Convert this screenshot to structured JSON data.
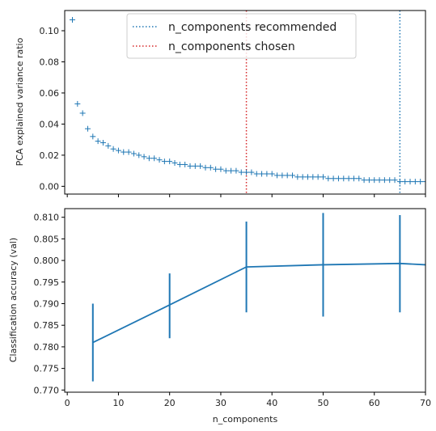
{
  "chart_data": [
    {
      "type": "scatter",
      "marker": "+",
      "ylabel": "PCA explained variance ratio",
      "xlim": [
        -0.5,
        70
      ],
      "ylim": [
        -0.005,
        0.113
      ],
      "yticks": [
        0.0,
        0.02,
        0.04,
        0.06,
        0.08,
        0.1
      ],
      "ytick_labels": [
        "0.00",
        "0.02",
        "0.04",
        "0.06",
        "0.08",
        "0.10"
      ],
      "color": "#1f77b4",
      "x": [
        1,
        2,
        3,
        4,
        5,
        6,
        7,
        8,
        9,
        10,
        11,
        12,
        13,
        14,
        15,
        16,
        17,
        18,
        19,
        20,
        21,
        22,
        23,
        24,
        25,
        26,
        27,
        28,
        29,
        30,
        31,
        32,
        33,
        34,
        35,
        36,
        37,
        38,
        39,
        40,
        41,
        42,
        43,
        44,
        45,
        46,
        47,
        48,
        49,
        50,
        51,
        52,
        53,
        54,
        55,
        56,
        57,
        58,
        59,
        60,
        61,
        62,
        63,
        64,
        65,
        66,
        67,
        68,
        69,
        70
      ],
      "y": [
        0.107,
        0.053,
        0.047,
        0.037,
        0.032,
        0.029,
        0.028,
        0.026,
        0.024,
        0.023,
        0.022,
        0.022,
        0.021,
        0.02,
        0.019,
        0.018,
        0.018,
        0.017,
        0.016,
        0.016,
        0.015,
        0.014,
        0.014,
        0.013,
        0.013,
        0.013,
        0.012,
        0.012,
        0.011,
        0.011,
        0.01,
        0.01,
        0.01,
        0.009,
        0.009,
        0.009,
        0.008,
        0.008,
        0.008,
        0.008,
        0.007,
        0.007,
        0.007,
        0.007,
        0.006,
        0.006,
        0.006,
        0.006,
        0.006,
        0.006,
        0.005,
        0.005,
        0.005,
        0.005,
        0.005,
        0.005,
        0.005,
        0.004,
        0.004,
        0.004,
        0.004,
        0.004,
        0.004,
        0.004,
        0.003,
        0.003,
        0.003,
        0.003,
        0.003,
        0.003
      ],
      "vlines": [
        {
          "x": 65,
          "color": "#1f77b4",
          "style": "dotted",
          "label": "n_components recommended"
        },
        {
          "x": 35,
          "color": "#d62728",
          "style": "dotted",
          "label": "n_components chosen"
        }
      ],
      "legend": {
        "placement": "top-center"
      }
    },
    {
      "type": "line",
      "error_bars": true,
      "xlabel": "n_components",
      "ylabel": "Classification accuracy (val)",
      "xlim": [
        -0.5,
        70
      ],
      "ylim": [
        0.7695,
        0.812
      ],
      "xticks": [
        0,
        10,
        20,
        30,
        40,
        50,
        60,
        70
      ],
      "xtick_labels": [
        "0",
        "10",
        "20",
        "30",
        "40",
        "50",
        "60",
        "70"
      ],
      "yticks": [
        0.77,
        0.775,
        0.78,
        0.785,
        0.79,
        0.795,
        0.8,
        0.805,
        0.81
      ],
      "ytick_labels": [
        "0.770",
        "0.775",
        "0.780",
        "0.785",
        "0.790",
        "0.795",
        "0.800",
        "0.805",
        "0.810"
      ],
      "color": "#1f77b4",
      "x": [
        5,
        20,
        35,
        50,
        65,
        70
      ],
      "y": [
        0.781,
        0.7897,
        0.7985,
        0.799,
        0.7993,
        0.799
      ],
      "error_low": [
        0.772,
        0.782,
        0.788,
        0.787,
        0.788,
        null
      ],
      "error_high": [
        0.79,
        0.797,
        0.809,
        0.811,
        0.8105,
        null
      ]
    }
  ]
}
